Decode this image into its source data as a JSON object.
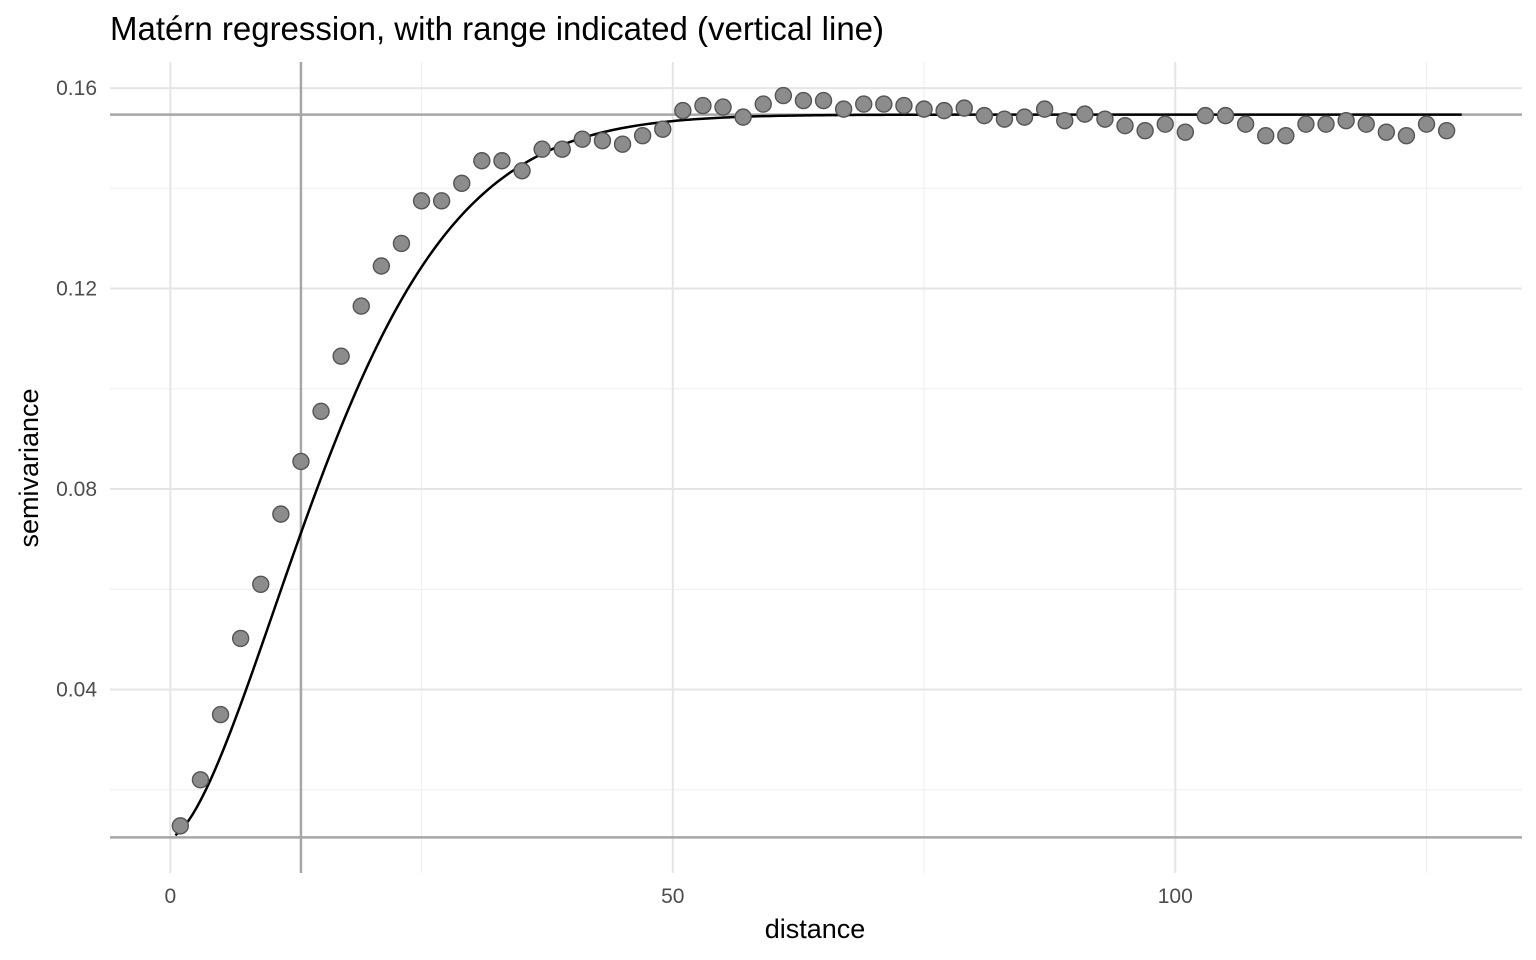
{
  "chart_data": {
    "type": "scatter",
    "title": "Matérn regression, with range indicated (vertical line)",
    "xlabel": "distance",
    "ylabel": "semivariance",
    "xlim": [
      -6,
      134.5
    ],
    "ylim": [
      0.0034,
      0.1652
    ],
    "x_ticks": [
      {
        "value": 0,
        "label": "0"
      },
      {
        "value": 50,
        "label": "50"
      },
      {
        "value": 100,
        "label": "100"
      }
    ],
    "x_minor_ticks": [
      25,
      75,
      125
    ],
    "y_ticks": [
      {
        "value": 0.04,
        "label": "0.04"
      },
      {
        "value": 0.08,
        "label": "0.08"
      },
      {
        "value": 0.12,
        "label": "0.12"
      },
      {
        "value": 0.16,
        "label": "0.16"
      }
    ],
    "y_minor_ticks": [
      0.02,
      0.06,
      0.1,
      0.14
    ],
    "grid": true,
    "range_line_x": 13,
    "sill_line_y": 0.1547,
    "nugget_line_y": 0.0105,
    "points": {
      "x": [
        1,
        3,
        5,
        7,
        9,
        11,
        13,
        15,
        17,
        19,
        21,
        23,
        25,
        27,
        29,
        31,
        33,
        35,
        37,
        39,
        41,
        43,
        45,
        47,
        49,
        51,
        53,
        55,
        57,
        59,
        61,
        63,
        65,
        67,
        69,
        71,
        73,
        75,
        77,
        79,
        81,
        83,
        85,
        87,
        89,
        91,
        93,
        95,
        97,
        99,
        101,
        103,
        105,
        107,
        109,
        111,
        113,
        115,
        117,
        119,
        121,
        123,
        125,
        127
      ],
      "y": [
        0.0128,
        0.022,
        0.035,
        0.0502,
        0.061,
        0.075,
        0.0855,
        0.0955,
        0.1065,
        0.1165,
        0.1245,
        0.129,
        0.1375,
        0.1375,
        0.141,
        0.1455,
        0.1455,
        0.1435,
        0.1478,
        0.1478,
        0.1498,
        0.1495,
        0.1488,
        0.1505,
        0.1518,
        0.1555,
        0.1565,
        0.1562,
        0.1542,
        0.1568,
        0.1585,
        0.1575,
        0.1575,
        0.1558,
        0.1568,
        0.1568,
        0.1565,
        0.1558,
        0.1555,
        0.156,
        0.1545,
        0.1538,
        0.1542,
        0.1558,
        0.1535,
        0.1548,
        0.1538,
        0.1525,
        0.1515,
        0.1528,
        0.1512,
        0.1545,
        0.1545,
        0.1528,
        0.1505,
        0.1505,
        0.1528,
        0.1528,
        0.1535,
        0.1528,
        0.1512,
        0.1505,
        0.1528,
        0.1515
      ]
    },
    "fit_curve": {
      "x_start": 0.5,
      "x_end": 128.5,
      "nugget": 0.0105,
      "sill": 0.1547,
      "range": 13
    }
  }
}
